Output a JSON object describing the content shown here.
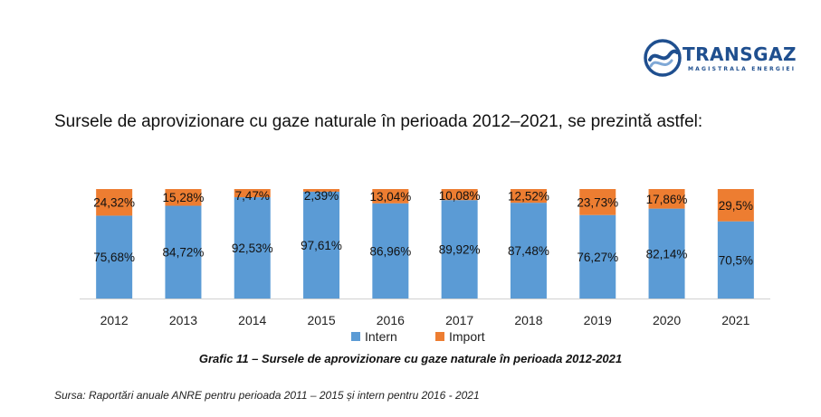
{
  "brand": {
    "name": "TRANSGAZ",
    "tagline": "MAGISTRALA ENERGIEI",
    "color": "#1f4f8f"
  },
  "heading": "Sursele de aprovizionare cu gaze naturale în perioada 2012–2021, se prezintă astfel:",
  "caption": "Grafic 11 – Sursele de aprovizionare cu gaze naturale în perioada 2012-2021",
  "source": "Sursa: Raportări anuale ANRE pentru perioada 2011 – 2015 și intern pentru 2016 - 2021",
  "chart_data": {
    "type": "bar",
    "stacked": true,
    "percent_stacked": true,
    "categories": [
      "2012",
      "2013",
      "2014",
      "2015",
      "2016",
      "2017",
      "2018",
      "2019",
      "2020",
      "2021"
    ],
    "series": [
      {
        "name": "Intern",
        "color": "#5b9bd5",
        "values": [
          75.68,
          84.72,
          92.53,
          97.61,
          86.96,
          89.92,
          87.48,
          76.27,
          82.14,
          70.5
        ],
        "labels": [
          "75,68%",
          "84,72%",
          "92,53%",
          "97,61%",
          "86,96%",
          "89,92%",
          "87,48%",
          "76,27%",
          "82,14%",
          "70,5%"
        ]
      },
      {
        "name": "Import",
        "color": "#ed7d31",
        "values": [
          24.32,
          15.28,
          7.47,
          2.39,
          13.04,
          10.08,
          12.52,
          23.73,
          17.86,
          29.5
        ],
        "labels": [
          "24,32%",
          "15,28%",
          "7,47%",
          "2,39%",
          "13,04%",
          "10,08%",
          "12,52%",
          "23,73%",
          "17,86%",
          "29,5%"
        ]
      }
    ],
    "ylim": [
      0,
      100
    ],
    "grid": false,
    "legend": "bottom"
  }
}
